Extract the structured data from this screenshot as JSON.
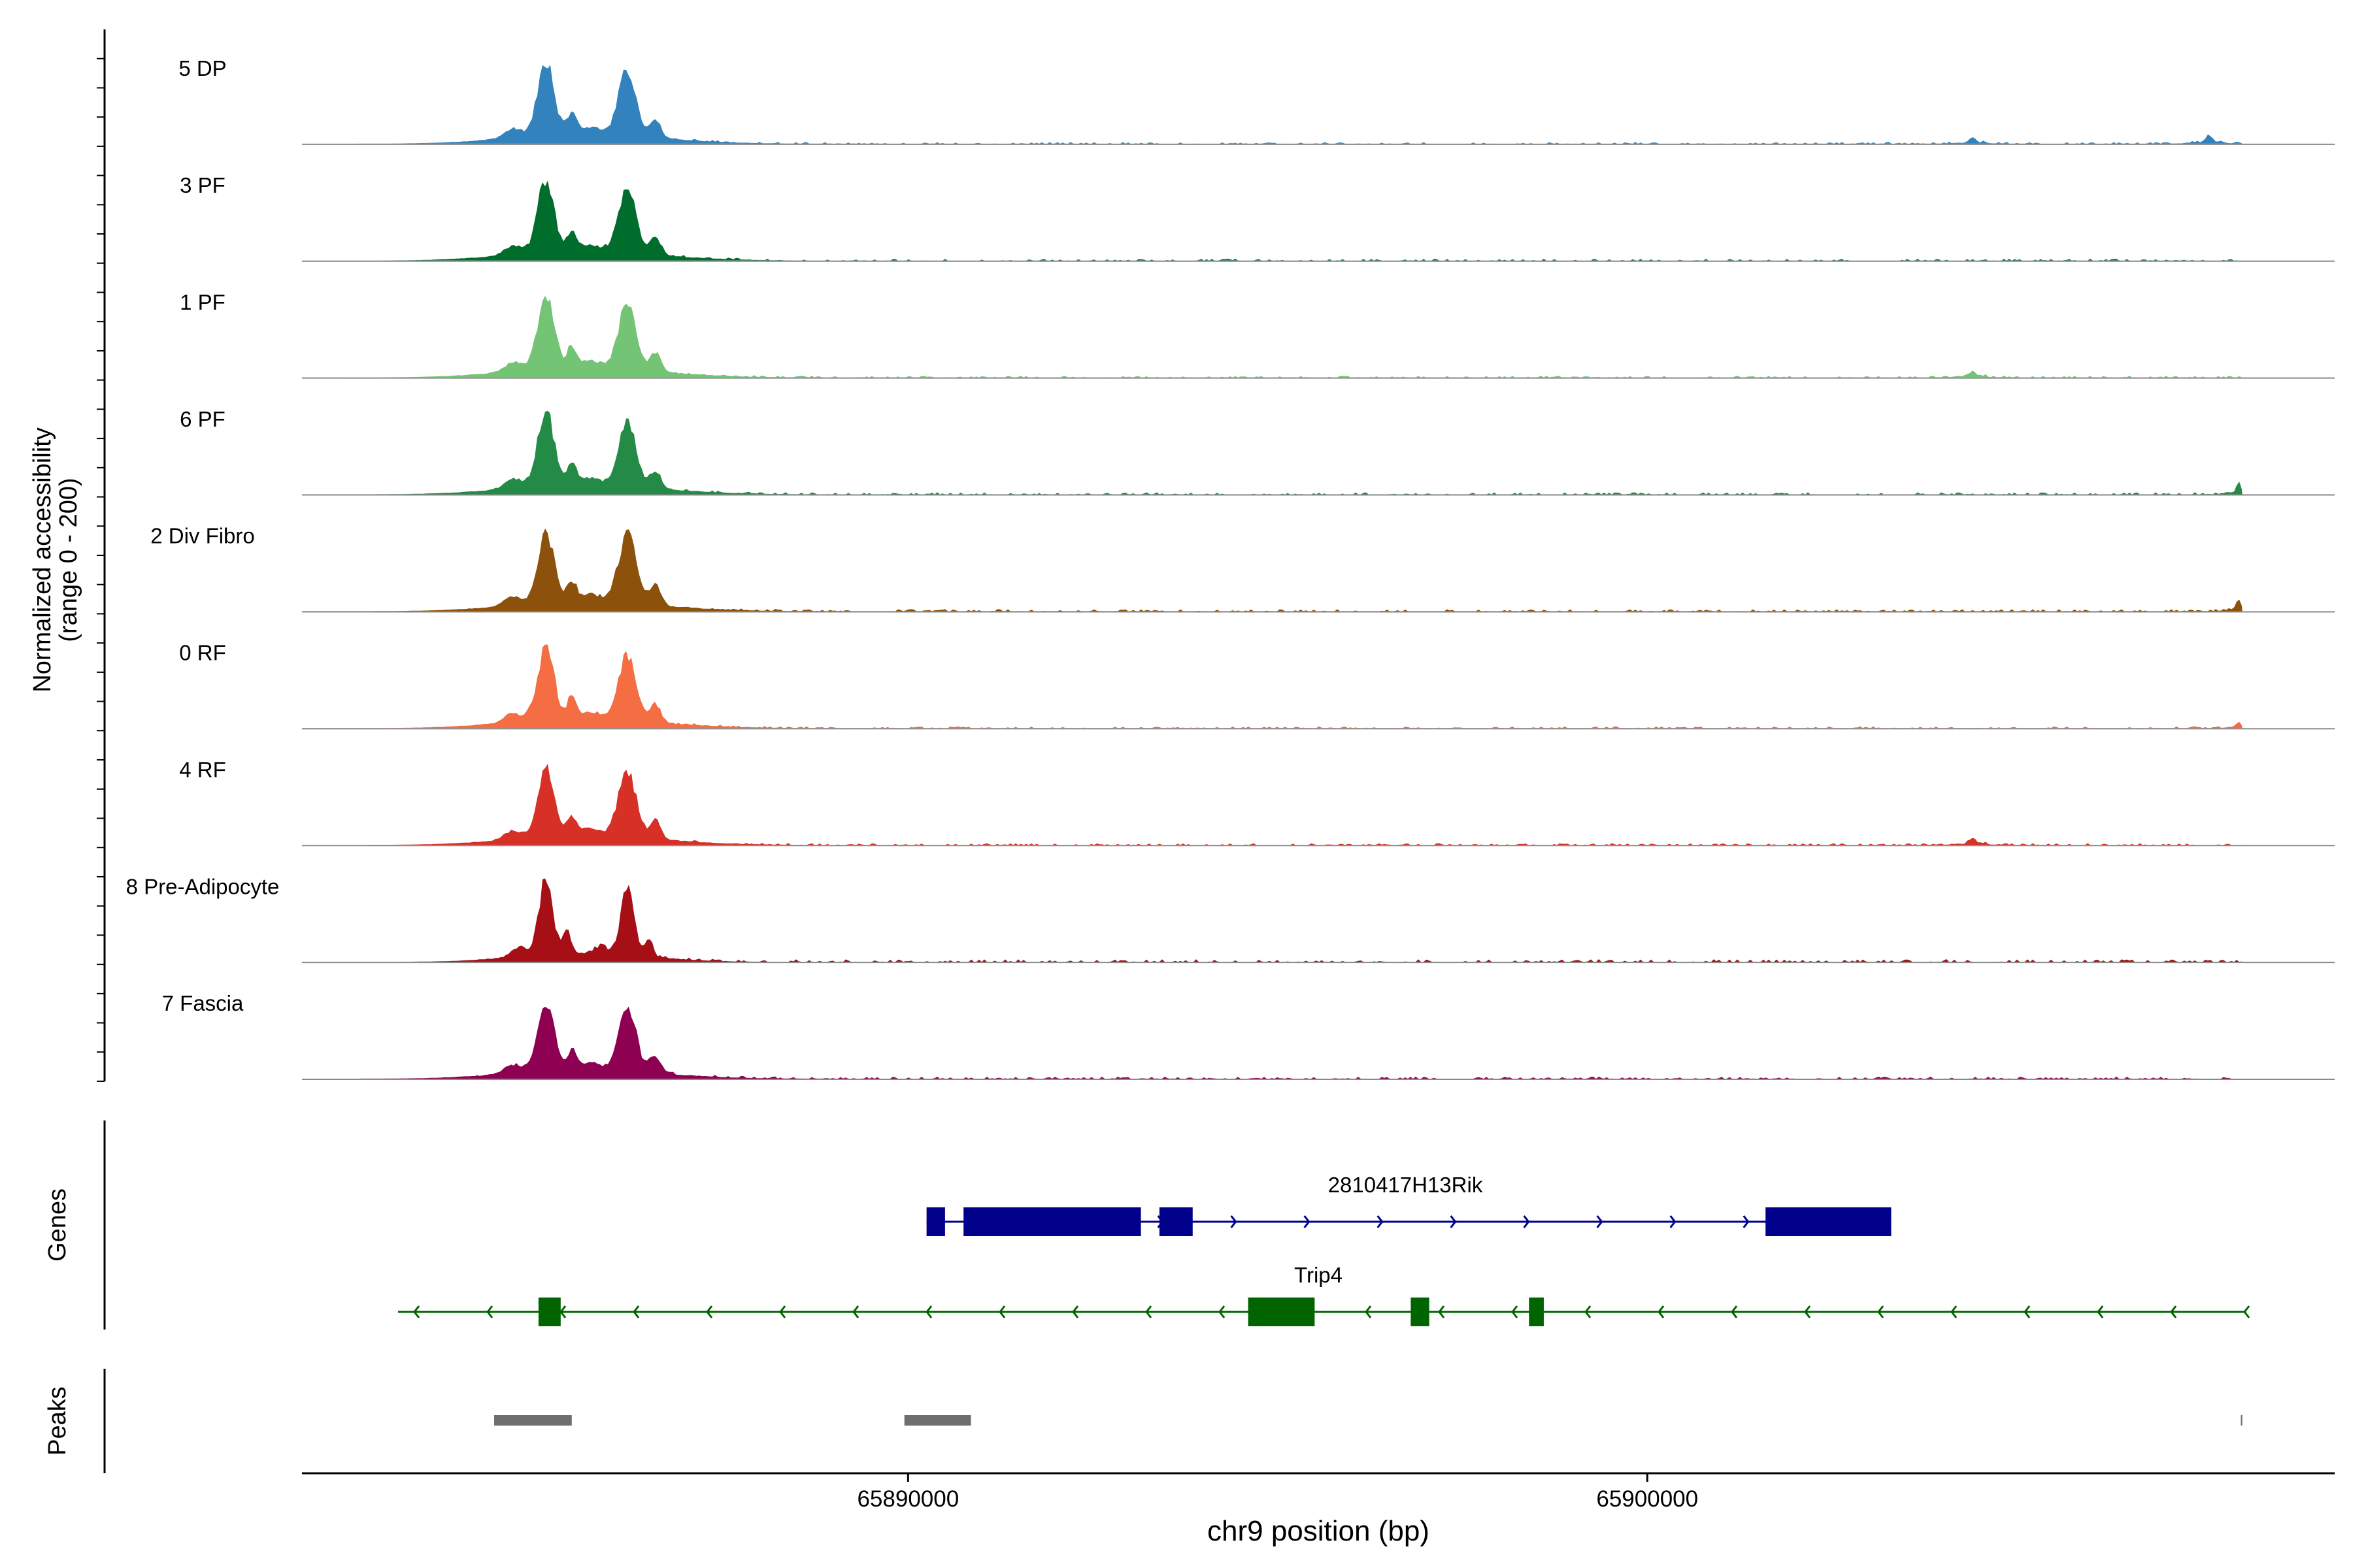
{
  "chart_data": {
    "type": "area",
    "title": "",
    "ylabel_line1": "Normalized accessibility",
    "ylabel_line2": "(range 0 - 200)",
    "xlabel": "chr9 position (bp)",
    "xlim": [
      65881800,
      65909300
    ],
    "ylim": [
      0,
      200
    ],
    "x_ticks": [
      65890000,
      65900000
    ],
    "x_tick_labels": [
      "65890000",
      "65900000"
    ],
    "region_end": 65908050,
    "tracks": [
      {
        "name": "5 DP",
        "color": "#3182bd",
        "peaks": [
          {
            "x": 65885100,
            "h": 0.95,
            "w": 110
          },
          {
            "x": 65886200,
            "h": 0.82,
            "w": 120
          },
          {
            "x": 65904400,
            "h": 0.07,
            "w": 50
          },
          {
            "x": 65907600,
            "h": 0.1,
            "w": 50
          }
        ],
        "noise": 0.05
      },
      {
        "name": "3 PF",
        "color": "#006d2c",
        "peaks": [
          {
            "x": 65885100,
            "h": 0.93,
            "w": 110
          },
          {
            "x": 65886200,
            "h": 0.8,
            "w": 120
          }
        ],
        "noise": 0.05
      },
      {
        "name": "1 PF",
        "color": "#74c476",
        "peaks": [
          {
            "x": 65885100,
            "h": 0.97,
            "w": 110
          },
          {
            "x": 65886200,
            "h": 0.83,
            "w": 120
          },
          {
            "x": 65904400,
            "h": 0.07,
            "w": 50
          }
        ],
        "noise": 0.05
      },
      {
        "name": "6 PF",
        "color": "#238b45",
        "peaks": [
          {
            "x": 65885100,
            "h": 0.97,
            "w": 110
          },
          {
            "x": 65886200,
            "h": 0.82,
            "w": 120
          },
          {
            "x": 65908000,
            "h": 0.15,
            "w": 30
          }
        ],
        "noise": 0.06
      },
      {
        "name": "2 Div Fibro",
        "color": "#8c510a",
        "peaks": [
          {
            "x": 65885100,
            "h": 0.91,
            "w": 110
          },
          {
            "x": 65886200,
            "h": 0.88,
            "w": 120
          },
          {
            "x": 65908000,
            "h": 0.15,
            "w": 30
          }
        ],
        "noise": 0.06
      },
      {
        "name": "0 RF",
        "color": "#f46d43",
        "peaks": [
          {
            "x": 65885100,
            "h": 0.94,
            "w": 110
          },
          {
            "x": 65886200,
            "h": 0.81,
            "w": 120
          },
          {
            "x": 65908000,
            "h": 0.08,
            "w": 30
          }
        ],
        "noise": 0.05
      },
      {
        "name": "4 RF",
        "color": "#d73027",
        "peaks": [
          {
            "x": 65885100,
            "h": 0.9,
            "w": 110
          },
          {
            "x": 65886200,
            "h": 0.87,
            "w": 120
          },
          {
            "x": 65904400,
            "h": 0.08,
            "w": 50
          }
        ],
        "noise": 0.05
      },
      {
        "name": "8 Pre-Adipocyte",
        "color": "#a50f15",
        "peaks": [
          {
            "x": 65885100,
            "h": 1.0,
            "w": 90
          },
          {
            "x": 65886200,
            "h": 0.83,
            "w": 90
          }
        ],
        "noise": 0.08
      },
      {
        "name": "7 Fascia",
        "color": "#8e0152",
        "peaks": [
          {
            "x": 65885100,
            "h": 0.9,
            "w": 110
          },
          {
            "x": 65886200,
            "h": 0.8,
            "w": 120
          }
        ],
        "noise": 0.06
      }
    ],
    "genes_label": "Genes",
    "genes": [
      {
        "name": "2810417H13Rik",
        "strand": "+",
        "color": "#00008b",
        "start": 65890250,
        "end": 65903300,
        "exons": [
          [
            65890250,
            65890500
          ],
          [
            65890750,
            65893150
          ],
          [
            65893400,
            65893850
          ],
          [
            65901600,
            65903300
          ]
        ]
      },
      {
        "name": "Trip4",
        "strand": "-",
        "color": "#006400",
        "start": 65883100,
        "end": 65908100,
        "exons": [
          [
            65885000,
            65885300
          ],
          [
            65894600,
            65895500
          ],
          [
            65896800,
            65897050
          ],
          [
            65898400,
            65898600
          ]
        ]
      }
    ],
    "peaks_label": "Peaks",
    "peak_regions": [
      [
        65884400,
        65885450
      ],
      [
        65889950,
        65890850
      ],
      [
        65908030,
        65908050
      ]
    ]
  }
}
